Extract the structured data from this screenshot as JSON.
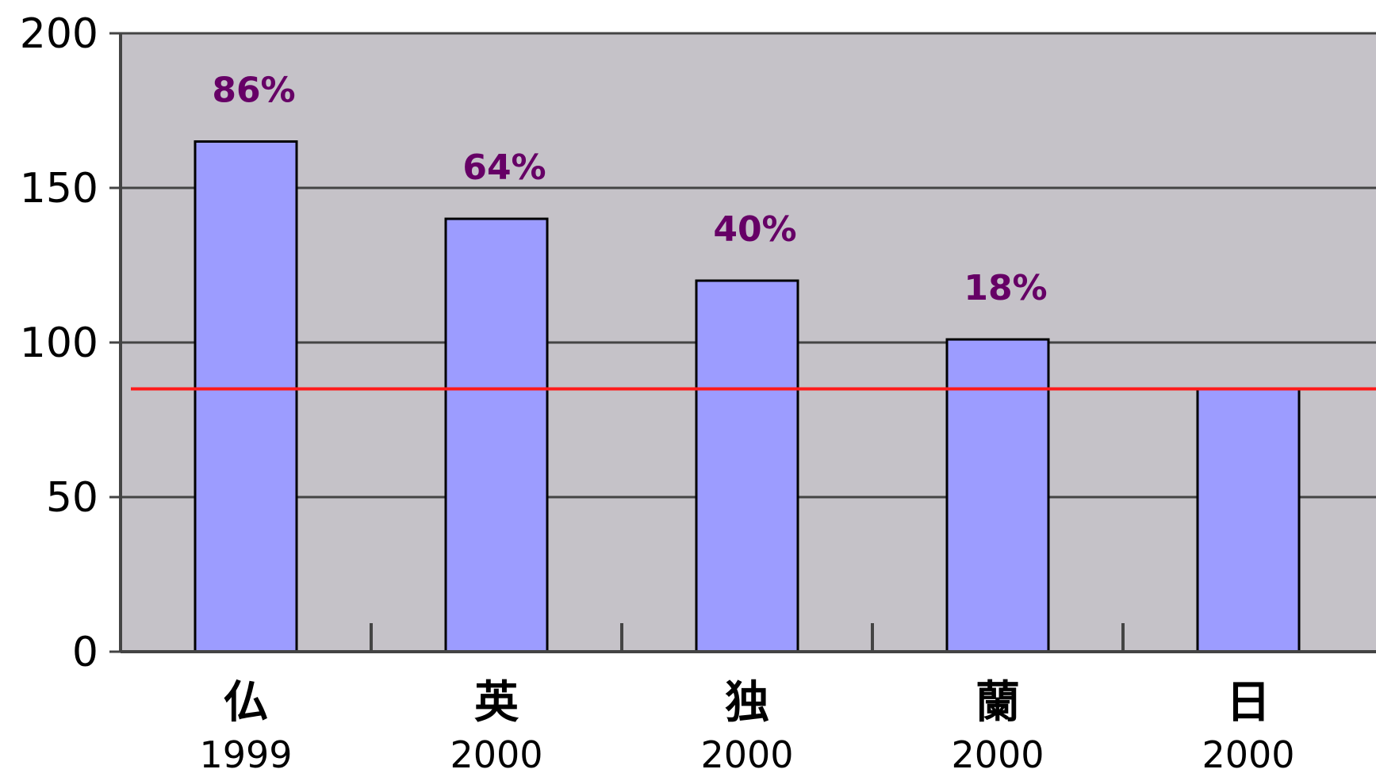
{
  "chart_data": {
    "type": "bar",
    "categories": [
      "仏",
      "英",
      "独",
      "蘭",
      "日"
    ],
    "category_years": [
      "1999",
      "2000",
      "2000",
      "2000",
      "2000"
    ],
    "values": [
      165,
      140,
      120,
      101,
      85
    ],
    "data_labels": [
      "86%",
      "64%",
      "40%",
      "18%",
      ""
    ],
    "reference_line": 85,
    "ylim": [
      0,
      200
    ],
    "yticks": [
      0,
      50,
      100,
      150,
      200
    ],
    "title": "",
    "xlabel": "",
    "ylabel": "",
    "grid": true,
    "colors": {
      "plot_background": "#c5c2c8",
      "bar_fill": "#9c9cff",
      "bar_stroke": "#000000",
      "gridline": "#444444",
      "reference_line": "#ff1a1a",
      "data_label": "#660066"
    }
  }
}
